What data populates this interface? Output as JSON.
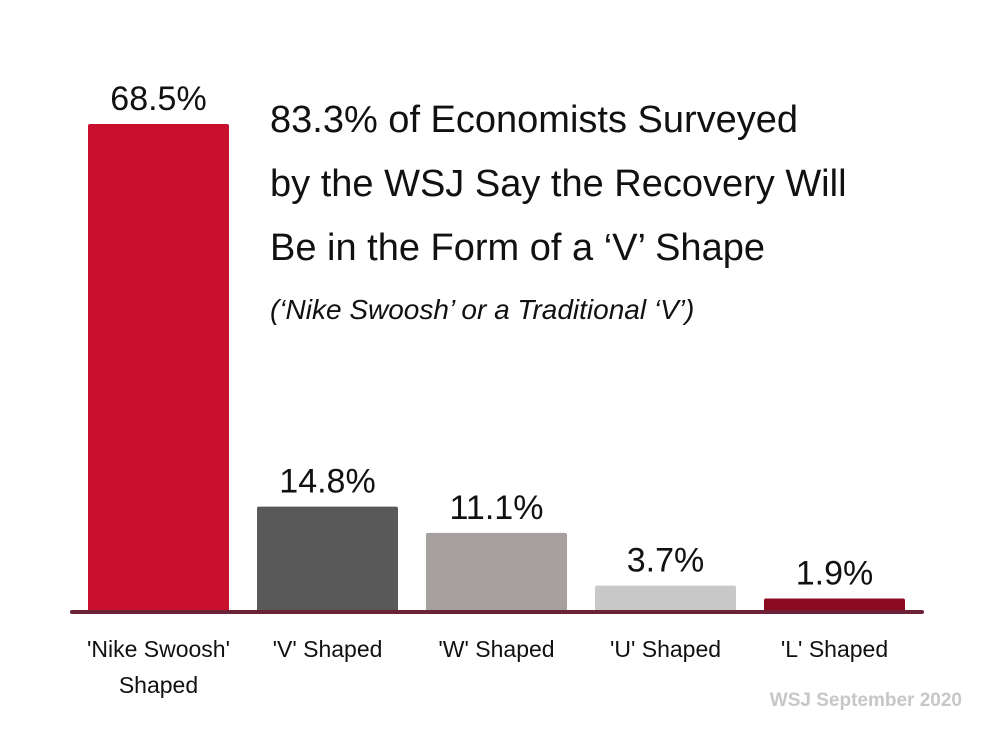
{
  "chart_data": {
    "type": "bar",
    "title_lines": [
      "83.3% of Economists Surveyed",
      "by the WSJ Say the Recovery Will",
      "Be in the Form of a ‘V’ Shape"
    ],
    "subtitle": "(‘Nike Swoosh’ or a Traditional ‘V’)",
    "categories": [
      [
        "'Nike Swoosh'",
        "Shaped"
      ],
      [
        "'V' Shaped"
      ],
      [
        "'W' Shaped"
      ],
      [
        "'U' Shaped"
      ],
      [
        "'L' Shaped"
      ]
    ],
    "values": [
      68.5,
      14.8,
      11.1,
      3.7,
      1.9
    ],
    "value_labels": [
      "68.5%",
      "14.8%",
      "11.1%",
      "3.7%",
      "1.9%"
    ],
    "colors": [
      "#c8102e",
      "#595959",
      "#a6a09e",
      "#c8c8c8",
      "#8b0a1f"
    ],
    "xlabel": "",
    "ylabel": "",
    "ylim": [
      0,
      68.5
    ],
    "grid": false,
    "axis_color": "#6b2136"
  },
  "source": "WSJ September 2020"
}
